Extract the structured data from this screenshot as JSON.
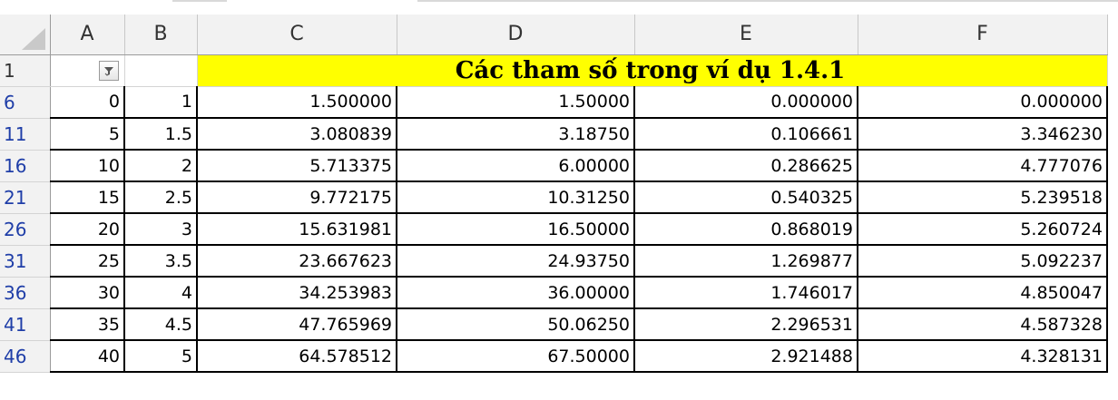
{
  "sheet": {
    "corner_icon": "select-all-triangle",
    "columns": [
      "A",
      "B",
      "C",
      "D",
      "E",
      "F"
    ],
    "filter_icon": "filter-funnel-icon",
    "title": "Các tham số trong ví dụ 1.4.1",
    "header_row_label": "1",
    "rows": [
      {
        "row": "6",
        "cells": [
          "0",
          "1",
          "1.500000",
          "1.50000",
          "0.000000",
          "0.000000"
        ]
      },
      {
        "row": "11",
        "cells": [
          "5",
          "1.5",
          "3.080839",
          "3.18750",
          "0.106661",
          "3.346230"
        ]
      },
      {
        "row": "16",
        "cells": [
          "10",
          "2",
          "5.713375",
          "6.00000",
          "0.286625",
          "4.777076"
        ]
      },
      {
        "row": "21",
        "cells": [
          "15",
          "2.5",
          "9.772175",
          "10.31250",
          "0.540325",
          "5.239518"
        ]
      },
      {
        "row": "26",
        "cells": [
          "20",
          "3",
          "15.631981",
          "16.50000",
          "0.868019",
          "5.260724"
        ]
      },
      {
        "row": "31",
        "cells": [
          "25",
          "3.5",
          "23.667623",
          "24.93750",
          "1.269877",
          "5.092237"
        ]
      },
      {
        "row": "36",
        "cells": [
          "30",
          "4",
          "34.253983",
          "36.00000",
          "1.746017",
          "4.850047"
        ]
      },
      {
        "row": "41",
        "cells": [
          "35",
          "4.5",
          "47.765969",
          "50.06250",
          "2.296531",
          "4.587328"
        ]
      },
      {
        "row": "46",
        "cells": [
          "40",
          "5",
          "64.578512",
          "67.50000",
          "2.921488",
          "4.328131"
        ]
      }
    ],
    "colors": {
      "title_fill": "#ffff00",
      "header_fill": "#f2f2f2",
      "filtered_row_number": "#1f3ea8"
    }
  }
}
